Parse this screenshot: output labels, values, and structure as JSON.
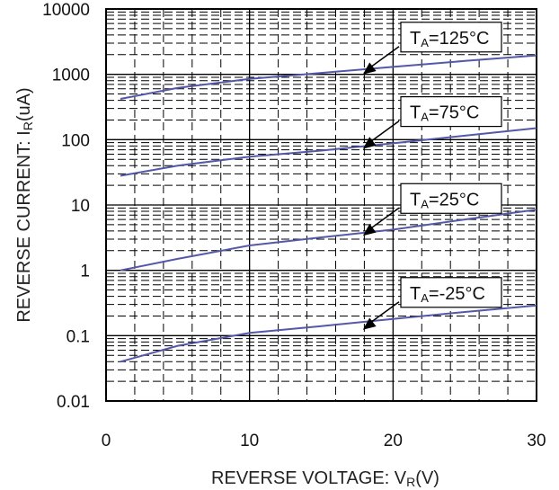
{
  "chart_data": {
    "type": "line",
    "title": "",
    "xlabel": "REVERSE VOLTAGE: V",
    "xlabel_sub": "R",
    "xlabel_unit": "(V)",
    "ylabel": "REVERSE CURRENT: I",
    "ylabel_sub": "R",
    "ylabel_unit": "(uA)",
    "xlim": [
      0,
      30
    ],
    "ylim": [
      0.01,
      10000
    ],
    "yscale": "log",
    "xticks": [
      0,
      10,
      20,
      30
    ],
    "xtick_labels": [
      "0",
      "10",
      "20",
      "30"
    ],
    "yticks": [
      0.01,
      0.1,
      1,
      10,
      100,
      1000,
      10000
    ],
    "ytick_labels": [
      "0.01",
      "0.1",
      "1",
      "10",
      "100",
      "1000",
      "10000"
    ],
    "grid": "major solid, minor dashed",
    "line_color": "#5558a8",
    "series": [
      {
        "name": "TA=125°C",
        "label_main": "T",
        "label_sub": "A",
        "label_rest": "=125°C",
        "x": [
          1,
          5,
          10,
          15,
          20,
          25,
          30
        ],
        "y": [
          420,
          620,
          850,
          1050,
          1300,
          1600,
          1950
        ]
      },
      {
        "name": "TA=75°C",
        "label_main": "T",
        "label_sub": "A",
        "label_rest": "=75°C",
        "x": [
          1,
          5,
          10,
          15,
          20,
          25,
          30
        ],
        "y": [
          28,
          40,
          55,
          68,
          88,
          115,
          150
        ]
      },
      {
        "name": "TA=25°C",
        "label_main": "T",
        "label_sub": "A",
        "label_rest": "=25°C",
        "x": [
          1,
          5,
          10,
          15,
          20,
          25,
          30
        ],
        "y": [
          1.0,
          1.5,
          2.4,
          3.2,
          4.2,
          6.0,
          8.5
        ]
      },
      {
        "name": "TA=-25°C",
        "label_main": "T",
        "label_sub": "A",
        "label_rest": "=-25°C",
        "x": [
          1,
          5,
          10,
          15,
          20,
          25,
          30
        ],
        "y": [
          0.04,
          0.07,
          0.11,
          0.14,
          0.18,
          0.23,
          0.29
        ]
      }
    ]
  }
}
